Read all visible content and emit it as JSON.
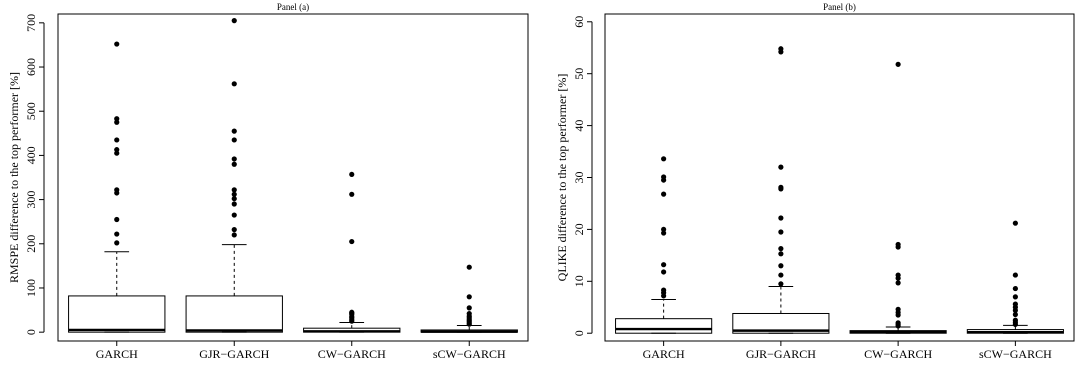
{
  "chart_data": [
    {
      "type": "box",
      "title": "Panel (a)",
      "xlabel": "",
      "ylabel": "RMSPE difference to the top performer [%]",
      "ylim": [
        -20,
        720
      ],
      "yticks": [
        0,
        100,
        200,
        300,
        400,
        500,
        600,
        700
      ],
      "grid": false,
      "categories": [
        "GARCH",
        "GJR−GARCH",
        "CW−GARCH",
        "sCW−GARCH"
      ],
      "boxes": [
        {
          "min": 0,
          "q1": 0,
          "median": 5,
          "q3": 82,
          "max": 182,
          "outliers": [
            202,
            222,
            255,
            315,
            322,
            405,
            413,
            435,
            475,
            483,
            652
          ]
        },
        {
          "min": 0,
          "q1": 0,
          "median": 4,
          "q3": 82,
          "max": 198,
          "outliers": [
            220,
            232,
            265,
            290,
            302,
            312,
            322,
            380,
            392,
            435,
            455,
            562,
            705
          ]
        },
        {
          "min": 0,
          "q1": 0,
          "median": 2,
          "q3": 9,
          "max": 22,
          "outliers": [
            25,
            28,
            32,
            35,
            40,
            43,
            45,
            205,
            312,
            357
          ]
        },
        {
          "min": 0,
          "q1": 0,
          "median": 1,
          "q3": 5,
          "max": 15,
          "outliers": [
            18,
            21,
            25,
            28,
            32,
            36,
            42,
            55,
            80,
            147
          ]
        }
      ]
    },
    {
      "type": "box",
      "title": "Panel (b)",
      "xlabel": "",
      "ylabel": "QLIKE difference to the top performer [%]",
      "ylim": [
        -1.5,
        61.5
      ],
      "yticks": [
        0,
        10,
        20,
        30,
        40,
        50,
        60
      ],
      "grid": false,
      "categories": [
        "GARCH",
        "GJR−GARCH",
        "CW−GARCH",
        "sCW−GARCH"
      ],
      "boxes": [
        {
          "min": 0,
          "q1": 0,
          "median": 0.8,
          "q3": 2.8,
          "max": 6.5,
          "outliers": [
            7.2,
            7.8,
            8.3,
            11.8,
            13.2,
            19.3,
            20.0,
            26.8,
            29.5,
            30.1,
            33.6
          ]
        },
        {
          "min": 0,
          "q1": 0,
          "median": 0.5,
          "q3": 3.8,
          "max": 9.0,
          "outliers": [
            9.5,
            11.2,
            13.0,
            15.3,
            16.3,
            19.5,
            22.2,
            27.8,
            28.1,
            32.0,
            54.2,
            54.8
          ]
        },
        {
          "min": 0,
          "q1": 0,
          "median": 0.2,
          "q3": 0.5,
          "max": 1.2,
          "outliers": [
            1.4,
            1.7,
            2.0,
            3.5,
            4.0,
            4.6,
            9.7,
            10.6,
            11.2,
            16.6,
            17.1,
            51.8
          ]
        },
        {
          "min": 0,
          "q1": 0,
          "median": 0.2,
          "q3": 0.7,
          "max": 1.5,
          "outliers": [
            1.7,
            2.1,
            2.5,
            3.6,
            4.4,
            5.0,
            5.6,
            7.0,
            8.6,
            11.2,
            21.2
          ]
        }
      ]
    }
  ]
}
